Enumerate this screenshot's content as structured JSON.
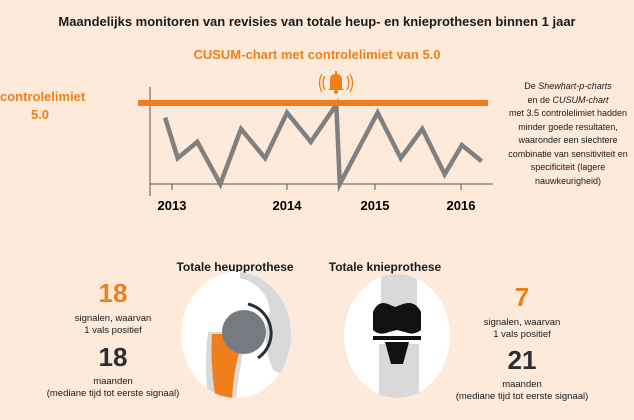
{
  "title": "Maandelijks monitoren van revisies van totale heup- en knieprothesen binnen 1 jaar",
  "colors": {
    "background": "#fdeadb",
    "accent": "#ee7f1a",
    "line": "#808080",
    "dark": "#2b2f33"
  },
  "chart_data": {
    "type": "line",
    "title": "CUSUM-chart met controlelimiet van 5.0",
    "control_limit": {
      "label": "controlelimiet",
      "value": 5.0,
      "value_label": "5.0"
    },
    "alarm_icon": "bell-icon",
    "xlabel": "",
    "ylabel": "",
    "x_ticks": [
      "2013",
      "2014",
      "2015",
      "2016"
    ],
    "ylim": [
      0,
      5.5
    ],
    "series": [
      {
        "name": "CUSUM",
        "x": [
          2012.94,
          2013.05,
          2013.22,
          2013.42,
          2013.6,
          2013.81,
          2014.0,
          2014.27,
          2014.56,
          2014.6,
          2015.03,
          2015.3,
          2015.55,
          2015.81,
          2016.01,
          2016.24
        ],
        "y": [
          4.1,
          1.6,
          2.6,
          0,
          3.4,
          1.6,
          4.4,
          2.6,
          4.9,
          0,
          4.4,
          1.6,
          3.4,
          0.6,
          2.4,
          1.4
        ]
      }
    ],
    "grid": false
  },
  "note": {
    "p1": "De ",
    "i1": "Shewhart-p-charts",
    "p2": "en de ",
    "i2": "CUSUM-chart",
    "rest": "met 3.5 controlelimiet hadden minder goede resultaten, waaronder een slechtere combinatie van sensitiviteit en specificiteit (lagere nauwkeurigheid)"
  },
  "hip": {
    "title": "Totale heupprothese",
    "signals": "18",
    "signals_text": "signalen, waarvan",
    "false_pos": "1 vals positief",
    "months": "18",
    "months_text": "maanden",
    "median_text": "(mediane tijd tot eerste signaal)"
  },
  "knee": {
    "title": "Totale knieprothese",
    "signals": "7",
    "signals_text": "signalen, waarvan",
    "false_pos": "1 vals positief",
    "months": "21",
    "months_text": "maanden",
    "median_text": "(mediane tijd tot eerste signaal)"
  }
}
